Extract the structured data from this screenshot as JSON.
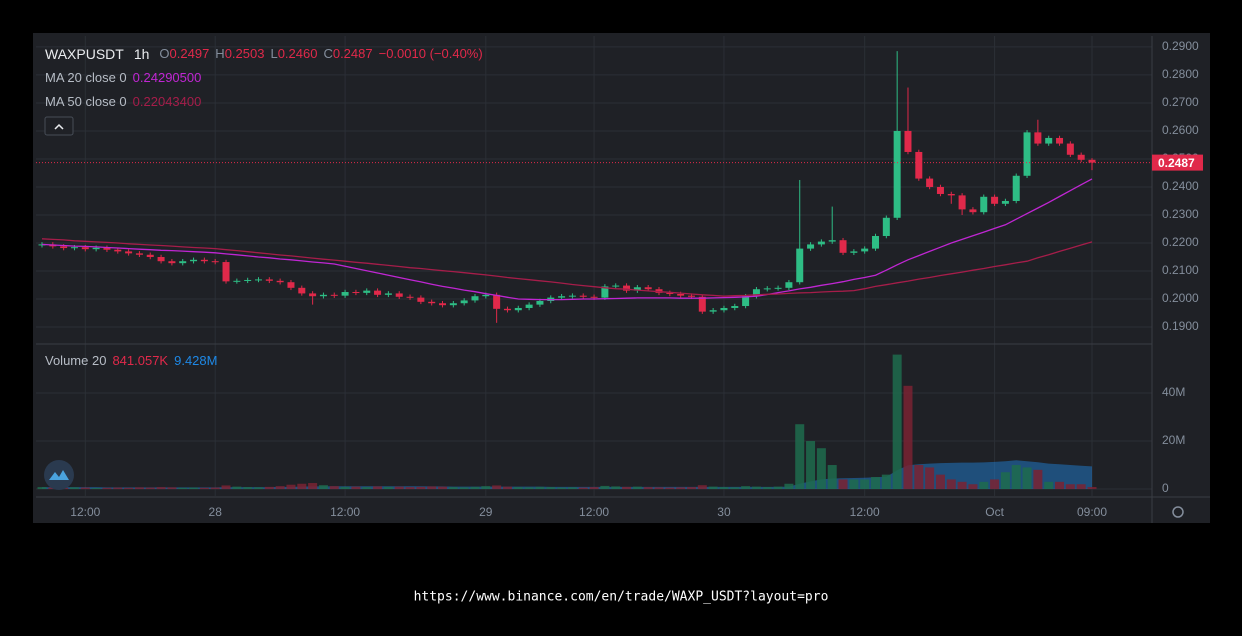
{
  "source_url": "https://www.binance.com/en/trade/WAXP_USDT?layout=pro",
  "chart_data": [
    {
      "type": "candlestick",
      "title": "WAXPUSDT",
      "interval": "1h",
      "readout": [
        {
          "label": "O",
          "value": "0.2497"
        },
        {
          "label": "H",
          "value": "0.2503"
        },
        {
          "label": "L",
          "value": "0.2460"
        },
        {
          "label": "C",
          "value": "0.2487"
        }
      ],
      "change": "−0.0010 (−0.40%)",
      "up_color": "#2ebd85",
      "down_color": "#e0294a",
      "grid": true,
      "categories": [
        null,
        null,
        null,
        null,
        "12:00",
        null,
        null,
        null,
        null,
        null,
        null,
        null,
        null,
        null,
        null,
        null,
        "28",
        null,
        null,
        null,
        null,
        null,
        null,
        null,
        null,
        null,
        null,
        null,
        "12:00",
        null,
        null,
        null,
        null,
        null,
        null,
        null,
        null,
        null,
        null,
        null,
        null,
        "29",
        null,
        null,
        null,
        null,
        null,
        null,
        null,
        null,
        null,
        "12:00",
        null,
        null,
        null,
        null,
        null,
        null,
        null,
        null,
        null,
        null,
        null,
        "30",
        null,
        null,
        null,
        null,
        null,
        null,
        null,
        null,
        null,
        null,
        null,
        null,
        "12:00",
        null,
        null,
        null,
        null,
        null,
        null,
        null,
        null,
        null,
        null,
        null,
        "Oct",
        null,
        null,
        null,
        null,
        null,
        null,
        null,
        null,
        "09:00"
      ],
      "open": [
        0.2192,
        0.2195,
        0.2188,
        0.2182,
        0.2185,
        0.2178,
        0.2183,
        0.2176,
        0.217,
        0.2163,
        0.2158,
        0.215,
        0.2135,
        0.2128,
        0.2135,
        0.214,
        0.2135,
        0.2132,
        0.2063,
        0.2065,
        0.2068,
        0.207,
        0.2065,
        0.206,
        0.204,
        0.202,
        0.201,
        0.2015,
        0.2012,
        0.2025,
        0.2022,
        0.203,
        0.2015,
        0.202,
        0.2008,
        0.2005,
        0.199,
        0.1985,
        0.1978,
        0.1985,
        0.1995,
        0.201,
        0.2015,
        0.1965,
        0.196,
        0.1968,
        0.198,
        0.1993,
        0.2005,
        0.201,
        0.2012,
        0.2008,
        0.2005,
        0.2045,
        0.2048,
        0.203,
        0.2042,
        0.2035,
        0.2022,
        0.2018,
        0.2012,
        0.2008,
        0.1955,
        0.196,
        0.1968,
        0.1975,
        0.201,
        0.2035,
        0.2038,
        0.204,
        0.206,
        0.218,
        0.2195,
        0.2205,
        0.221,
        0.2165,
        0.217,
        0.218,
        0.2225,
        0.229,
        0.26,
        0.2525,
        0.243,
        0.24,
        0.2375,
        0.237,
        0.232,
        0.231,
        0.2365,
        0.234,
        0.235,
        0.244,
        0.2595,
        0.2555,
        0.2575,
        0.2555,
        0.2515,
        0.2497
      ],
      "high": [
        0.2203,
        0.2203,
        0.2196,
        0.2193,
        0.2193,
        0.2191,
        0.2191,
        0.2184,
        0.2178,
        0.2171,
        0.2166,
        0.2158,
        0.2143,
        0.2143,
        0.2148,
        0.2148,
        0.2143,
        0.214,
        0.2073,
        0.2076,
        0.2078,
        0.2078,
        0.2073,
        0.2068,
        0.2048,
        0.2028,
        0.2023,
        0.2023,
        0.2033,
        0.2033,
        0.2038,
        0.2038,
        0.2028,
        0.2028,
        0.2016,
        0.2013,
        0.1998,
        0.1993,
        0.1993,
        0.2003,
        0.2018,
        0.2023,
        0.2023,
        0.1973,
        0.1976,
        0.1988,
        0.2001,
        0.2013,
        0.2018,
        0.202,
        0.202,
        0.2016,
        0.2053,
        0.2056,
        0.2056,
        0.205,
        0.205,
        0.2043,
        0.203,
        0.2026,
        0.202,
        0.2016,
        0.1968,
        0.1976,
        0.1983,
        0.2018,
        0.2043,
        0.2046,
        0.2048,
        0.2068,
        0.2425,
        0.2203,
        0.2213,
        0.233,
        0.2218,
        0.2178,
        0.2188,
        0.2233,
        0.2298,
        0.2885,
        0.2755,
        0.2533,
        0.2438,
        0.2408,
        0.2383,
        0.2378,
        0.2328,
        0.2373,
        0.2373,
        0.2358,
        0.2448,
        0.2603,
        0.264,
        0.2583,
        0.2583,
        0.2563,
        0.2523,
        0.2503
      ],
      "low": [
        0.2184,
        0.218,
        0.2174,
        0.2174,
        0.217,
        0.217,
        0.2168,
        0.2162,
        0.2155,
        0.215,
        0.2142,
        0.2127,
        0.212,
        0.212,
        0.2127,
        0.2127,
        0.2124,
        0.2055,
        0.2055,
        0.2057,
        0.206,
        0.2057,
        0.2052,
        0.2032,
        0.2012,
        0.198,
        0.2002,
        0.2004,
        0.2004,
        0.2014,
        0.2014,
        0.2007,
        0.2007,
        0.2,
        0.1997,
        0.1982,
        0.1977,
        0.197,
        0.197,
        0.1977,
        0.1987,
        0.2002,
        0.1915,
        0.1952,
        0.1952,
        0.196,
        0.1972,
        0.1985,
        0.1997,
        0.2002,
        0.2,
        0.1997,
        0.1997,
        0.2037,
        0.2022,
        0.2022,
        0.2027,
        0.2014,
        0.201,
        0.2004,
        0.2,
        0.1947,
        0.1947,
        0.1952,
        0.196,
        0.1967,
        0.2002,
        0.2027,
        0.203,
        0.2032,
        0.2052,
        0.2172,
        0.2187,
        0.2197,
        0.2157,
        0.2157,
        0.2162,
        0.2172,
        0.2217,
        0.2282,
        0.2517,
        0.2422,
        0.2392,
        0.2367,
        0.234,
        0.23,
        0.2302,
        0.2302,
        0.2332,
        0.2332,
        0.2342,
        0.2432,
        0.2547,
        0.2547,
        0.2547,
        0.2507,
        0.2489,
        0.246
      ],
      "close": [
        0.2195,
        0.2188,
        0.2182,
        0.2185,
        0.2178,
        0.2183,
        0.2176,
        0.217,
        0.2163,
        0.2158,
        0.215,
        0.2135,
        0.2128,
        0.2135,
        0.214,
        0.2135,
        0.2132,
        0.2063,
        0.2065,
        0.2068,
        0.207,
        0.2065,
        0.206,
        0.204,
        0.202,
        0.201,
        0.2015,
        0.2012,
        0.2025,
        0.2022,
        0.203,
        0.2015,
        0.202,
        0.2008,
        0.2005,
        0.199,
        0.1985,
        0.1978,
        0.1985,
        0.1995,
        0.201,
        0.2015,
        0.1965,
        0.196,
        0.1968,
        0.198,
        0.1993,
        0.2005,
        0.201,
        0.2012,
        0.2008,
        0.2005,
        0.2045,
        0.2048,
        0.203,
        0.2042,
        0.2035,
        0.2022,
        0.2018,
        0.2012,
        0.2008,
        0.1955,
        0.196,
        0.1968,
        0.1975,
        0.201,
        0.2035,
        0.2038,
        0.204,
        0.206,
        0.218,
        0.2195,
        0.2205,
        0.221,
        0.2165,
        0.217,
        0.218,
        0.2225,
        0.229,
        0.26,
        0.2525,
        0.243,
        0.24,
        0.2375,
        0.237,
        0.232,
        0.231,
        0.2365,
        0.234,
        0.235,
        0.244,
        0.2595,
        0.2555,
        0.2575,
        0.2555,
        0.2515,
        0.2497,
        0.2487
      ],
      "series": [
        {
          "name": "MA 20 close 0",
          "legend_value": "0.24290500",
          "color": "#c026d3",
          "values": [
            0.2195,
            0.2193,
            0.2191,
            0.2189,
            0.2188,
            0.2186,
            0.2184,
            0.2182,
            0.218,
            0.2178,
            0.2176,
            0.2174,
            0.2173,
            0.2171,
            0.2169,
            0.2167,
            0.2165,
            0.2161,
            0.2158,
            0.2154,
            0.215,
            0.2147,
            0.2143,
            0.214,
            0.2136,
            0.2132,
            0.2129,
            0.2125,
            0.2117,
            0.2109,
            0.2101,
            0.2093,
            0.2085,
            0.2077,
            0.2069,
            0.2061,
            0.2053,
            0.2045,
            0.2039,
            0.2032,
            0.2026,
            0.2019,
            0.2013,
            0.2006,
            0.2,
            0.1999,
            0.1998,
            0.1998,
            0.1998,
            0.1999,
            0.2,
            0.2,
            0.2001,
            0.2002,
            0.2003,
            0.2004,
            0.2004,
            0.2004,
            0.2004,
            0.2003,
            0.2003,
            0.2003,
            0.2004,
            0.2005,
            0.2006,
            0.2008,
            0.201,
            0.2016,
            0.2023,
            0.2029,
            0.2036,
            0.2042,
            0.2049,
            0.2055,
            0.2062,
            0.207,
            0.2077,
            0.2085,
            0.2103,
            0.2122,
            0.214,
            0.2155,
            0.217,
            0.2185,
            0.22,
            0.2213,
            0.2226,
            0.2239,
            0.2252,
            0.2265,
            0.2285,
            0.2305,
            0.2325,
            0.2345,
            0.2366,
            0.2387,
            0.2408,
            0.2429
          ]
        },
        {
          "name": "MA 50 close 0",
          "legend_value": "0.22043400",
          "color": "#a61d4a",
          "values": [
            0.2215,
            0.2213,
            0.2211,
            0.2208,
            0.2206,
            0.2204,
            0.2202,
            0.22,
            0.2197,
            0.2195,
            0.2193,
            0.2191,
            0.2189,
            0.2186,
            0.2184,
            0.2182,
            0.218,
            0.2176,
            0.2173,
            0.2169,
            0.2165,
            0.2161,
            0.2157,
            0.2154,
            0.215,
            0.2146,
            0.2142,
            0.2139,
            0.2135,
            0.2131,
            0.2128,
            0.2124,
            0.212,
            0.2116,
            0.2112,
            0.2109,
            0.2105,
            0.2101,
            0.2098,
            0.2094,
            0.209,
            0.2086,
            0.2082,
            0.2077,
            0.2073,
            0.2069,
            0.2065,
            0.2061,
            0.2057,
            0.2052,
            0.2048,
            0.2044,
            0.204,
            0.2037,
            0.2035,
            0.2032,
            0.2029,
            0.2026,
            0.2024,
            0.2021,
            0.2018,
            0.2015,
            0.2013,
            0.201,
            0.2012,
            0.2013,
            0.2015,
            0.2017,
            0.2018,
            0.202,
            0.2022,
            0.2023,
            0.2025,
            0.2027,
            0.2028,
            0.203,
            0.2037,
            0.2045,
            0.2051,
            0.2058,
            0.2064,
            0.2071,
            0.2077,
            0.2084,
            0.209,
            0.2096,
            0.2103,
            0.2109,
            0.2116,
            0.2122,
            0.2129,
            0.2135,
            0.2147,
            0.2158,
            0.217,
            0.2181,
            0.2193,
            0.2204
          ]
        }
      ],
      "ylim": [
        0.1843,
        0.2939
      ],
      "yticks": [
        {
          "value": 0.19,
          "label": "0.1900"
        },
        {
          "value": 0.2,
          "label": "0.2000"
        },
        {
          "value": 0.21,
          "label": "0.2100"
        },
        {
          "value": 0.22,
          "label": "0.2200"
        },
        {
          "value": 0.23,
          "label": "0.2300"
        },
        {
          "value": 0.24,
          "label": "0.2400"
        },
        {
          "value": 0.25,
          "label": "0.2500"
        },
        {
          "value": 0.26,
          "label": "0.2600"
        },
        {
          "value": 0.27,
          "label": "0.2700"
        },
        {
          "value": 0.28,
          "label": "0.2800"
        },
        {
          "value": 0.29,
          "label": "0.2900"
        }
      ]
    },
    {
      "type": "bar",
      "title": "Volume 20",
      "up_color": "#1f6b4e",
      "down_color": "#7a2233",
      "legend_value": "841.057K",
      "ma_legend_value": "9.428M",
      "ma_color": "#1e88e5",
      "values": [
        0.8,
        0.6,
        0.5,
        0.7,
        0.6,
        0.4,
        0.5,
        0.6,
        0.5,
        0.7,
        0.6,
        0.8,
        0.7,
        0.5,
        0.6,
        0.5,
        0.6,
        1.5,
        1.0,
        0.8,
        0.7,
        0.9,
        1.2,
        1.8,
        2.2,
        2.5,
        1.6,
        1.2,
        0.9,
        1.0,
        0.8,
        1.1,
        0.9,
        1.0,
        0.8,
        0.9,
        1.1,
        1.0,
        0.8,
        0.7,
        0.9,
        1.2,
        1.5,
        1.0,
        0.8,
        0.7,
        0.9,
        0.8,
        0.6,
        0.7,
        0.6,
        0.8,
        1.3,
        1.1,
        0.9,
        1.0,
        0.8,
        0.7,
        0.6,
        0.7,
        0.8,
        1.6,
        1.0,
        0.8,
        0.7,
        1.2,
        1.0,
        0.8,
        1.0,
        2.2,
        27,
        20,
        17,
        10,
        4,
        4,
        4,
        5,
        6,
        56,
        43,
        10,
        9,
        6,
        4,
        3,
        2,
        3,
        4,
        7,
        10,
        9,
        8,
        3,
        3,
        2,
        2,
        0.841057
      ],
      "ma_values": [
        0.8,
        0.8,
        0.8,
        0.8,
        0.8,
        0.8,
        0.7,
        0.7,
        0.7,
        0.7,
        0.7,
        0.7,
        0.7,
        0.7,
        0.7,
        0.7,
        0.7,
        0.8,
        0.8,
        0.8,
        0.8,
        0.8,
        0.9,
        0.9,
        1.0,
        1.1,
        1.1,
        1.2,
        1.2,
        1.2,
        1.2,
        1.2,
        1.2,
        1.2,
        1.2,
        1.2,
        1.1,
        1.1,
        1.0,
        1.0,
        1.0,
        1.0,
        1.0,
        1.0,
        1.0,
        1.0,
        1.0,
        0.9,
        0.9,
        0.9,
        0.9,
        0.9,
        0.9,
        0.9,
        0.9,
        0.9,
        0.9,
        0.9,
        0.9,
        0.9,
        0.9,
        0.9,
        0.9,
        0.9,
        0.9,
        0.9,
        0.9,
        0.9,
        0.9,
        1.0,
        2.2,
        3.2,
        4.0,
        4.4,
        4.5,
        4.6,
        4.7,
        4.9,
        5.1,
        7.8,
        9.9,
        10.3,
        10.6,
        10.8,
        10.9,
        11.0,
        11.0,
        11.1,
        11.3,
        11.6,
        12.0,
        11.6,
        11.2,
        10.6,
        10.3,
        10.0,
        9.7,
        9.428
      ],
      "ylim": [
        -2.9,
        60
      ],
      "yticks": [
        0,
        {
          "value": 20,
          "label": "20M"
        },
        {
          "value": 40,
          "label": "40M"
        }
      ]
    }
  ]
}
